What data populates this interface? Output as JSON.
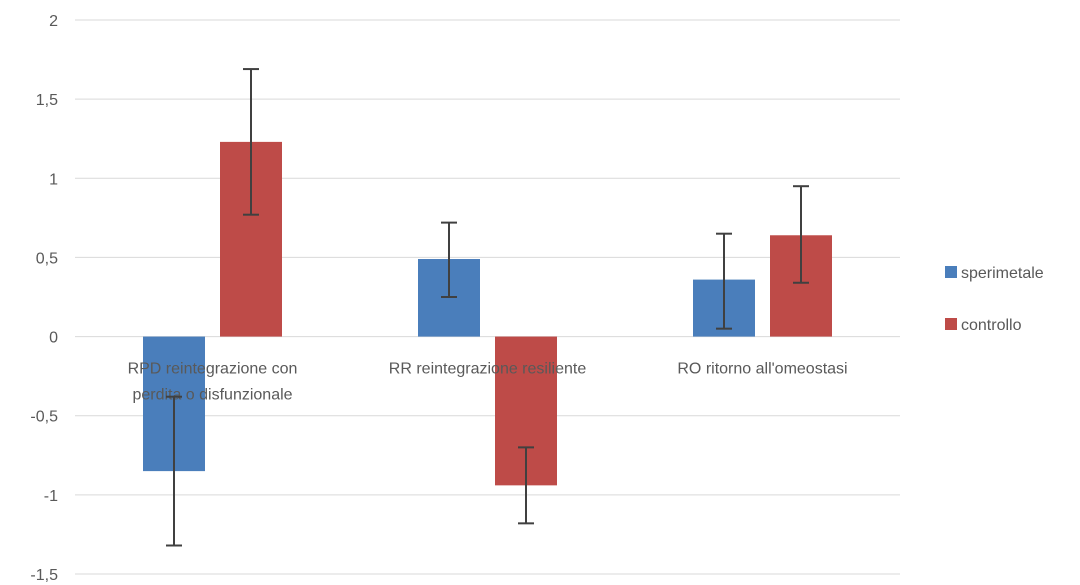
{
  "chart_data": {
    "type": "bar",
    "title": "",
    "xlabel": "",
    "ylabel": "",
    "ylim": [
      -1.5,
      2
    ],
    "yticks": [
      2,
      1.5,
      1,
      0.5,
      0,
      -0.5,
      -1,
      -1.5
    ],
    "ytick_labels": [
      "2",
      "1,5",
      "1",
      "0,5",
      "0",
      "-0,5",
      "-1",
      "-1,5"
    ],
    "grid": true,
    "legend_position": "right",
    "categories": [
      [
        "RPD reintegrazione con",
        "perdita o disfunzionale"
      ],
      [
        "RR reintegrazione resiliente"
      ],
      [
        "RO ritorno all'omeostasi"
      ]
    ],
    "series": [
      {
        "name": "sperimetale",
        "color": "#4a7ebb",
        "values": [
          -0.85,
          0.49,
          0.36
        ],
        "error_low": [
          -1.32,
          0.25,
          0.05
        ],
        "error_high": [
          -0.38,
          0.72,
          0.65
        ]
      },
      {
        "name": "controllo",
        "color": "#be4b48",
        "values": [
          1.23,
          -0.94,
          0.64
        ],
        "error_low": [
          0.77,
          -1.18,
          0.34
        ],
        "error_high": [
          1.69,
          -0.7,
          0.95
        ]
      }
    ],
    "gridline_color": "#d9d9d9",
    "errorbar_color": "#404040"
  }
}
